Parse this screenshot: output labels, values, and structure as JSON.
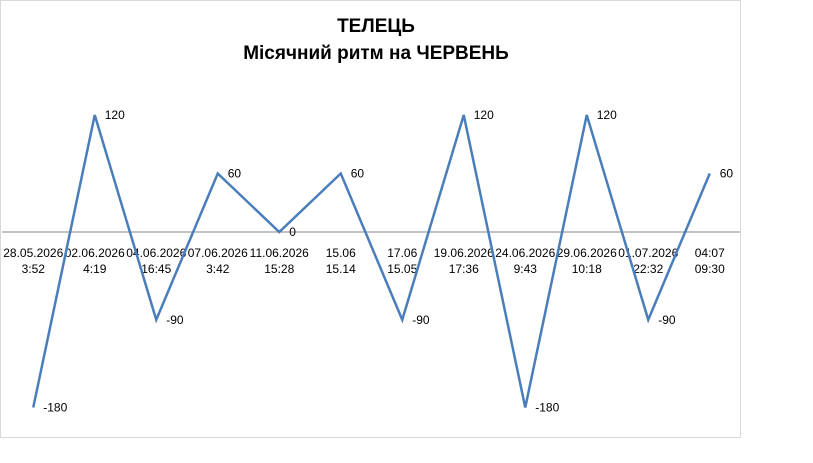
{
  "chart_data": {
    "type": "line",
    "title": "ТЕЛЕЦЬ",
    "subtitle": "Місячний ритм на ЧЕРВЕНЬ",
    "categories": [
      [
        "28.05.2026",
        "3:52"
      ],
      [
        "02.06.2026",
        "4:19"
      ],
      [
        "04.06.2026",
        "16:45"
      ],
      [
        "07.06.2026",
        "3:42"
      ],
      [
        "11.06.2026",
        "15:28"
      ],
      [
        "15.06",
        "15.14"
      ],
      [
        "17.06",
        "15.05"
      ],
      [
        "19.06.2026",
        "17:36"
      ],
      [
        "24.06.2026",
        "9:43"
      ],
      [
        "29.06.2026",
        "10:18"
      ],
      [
        "01.07.2026",
        "22:32"
      ],
      [
        "04:07",
        "09:30"
      ]
    ],
    "values": [
      -180,
      120,
      -90,
      60,
      0,
      60,
      -90,
      120,
      -180,
      120,
      -90,
      60
    ],
    "color": "#4a7ebb",
    "ylim": [
      -200,
      200
    ]
  }
}
